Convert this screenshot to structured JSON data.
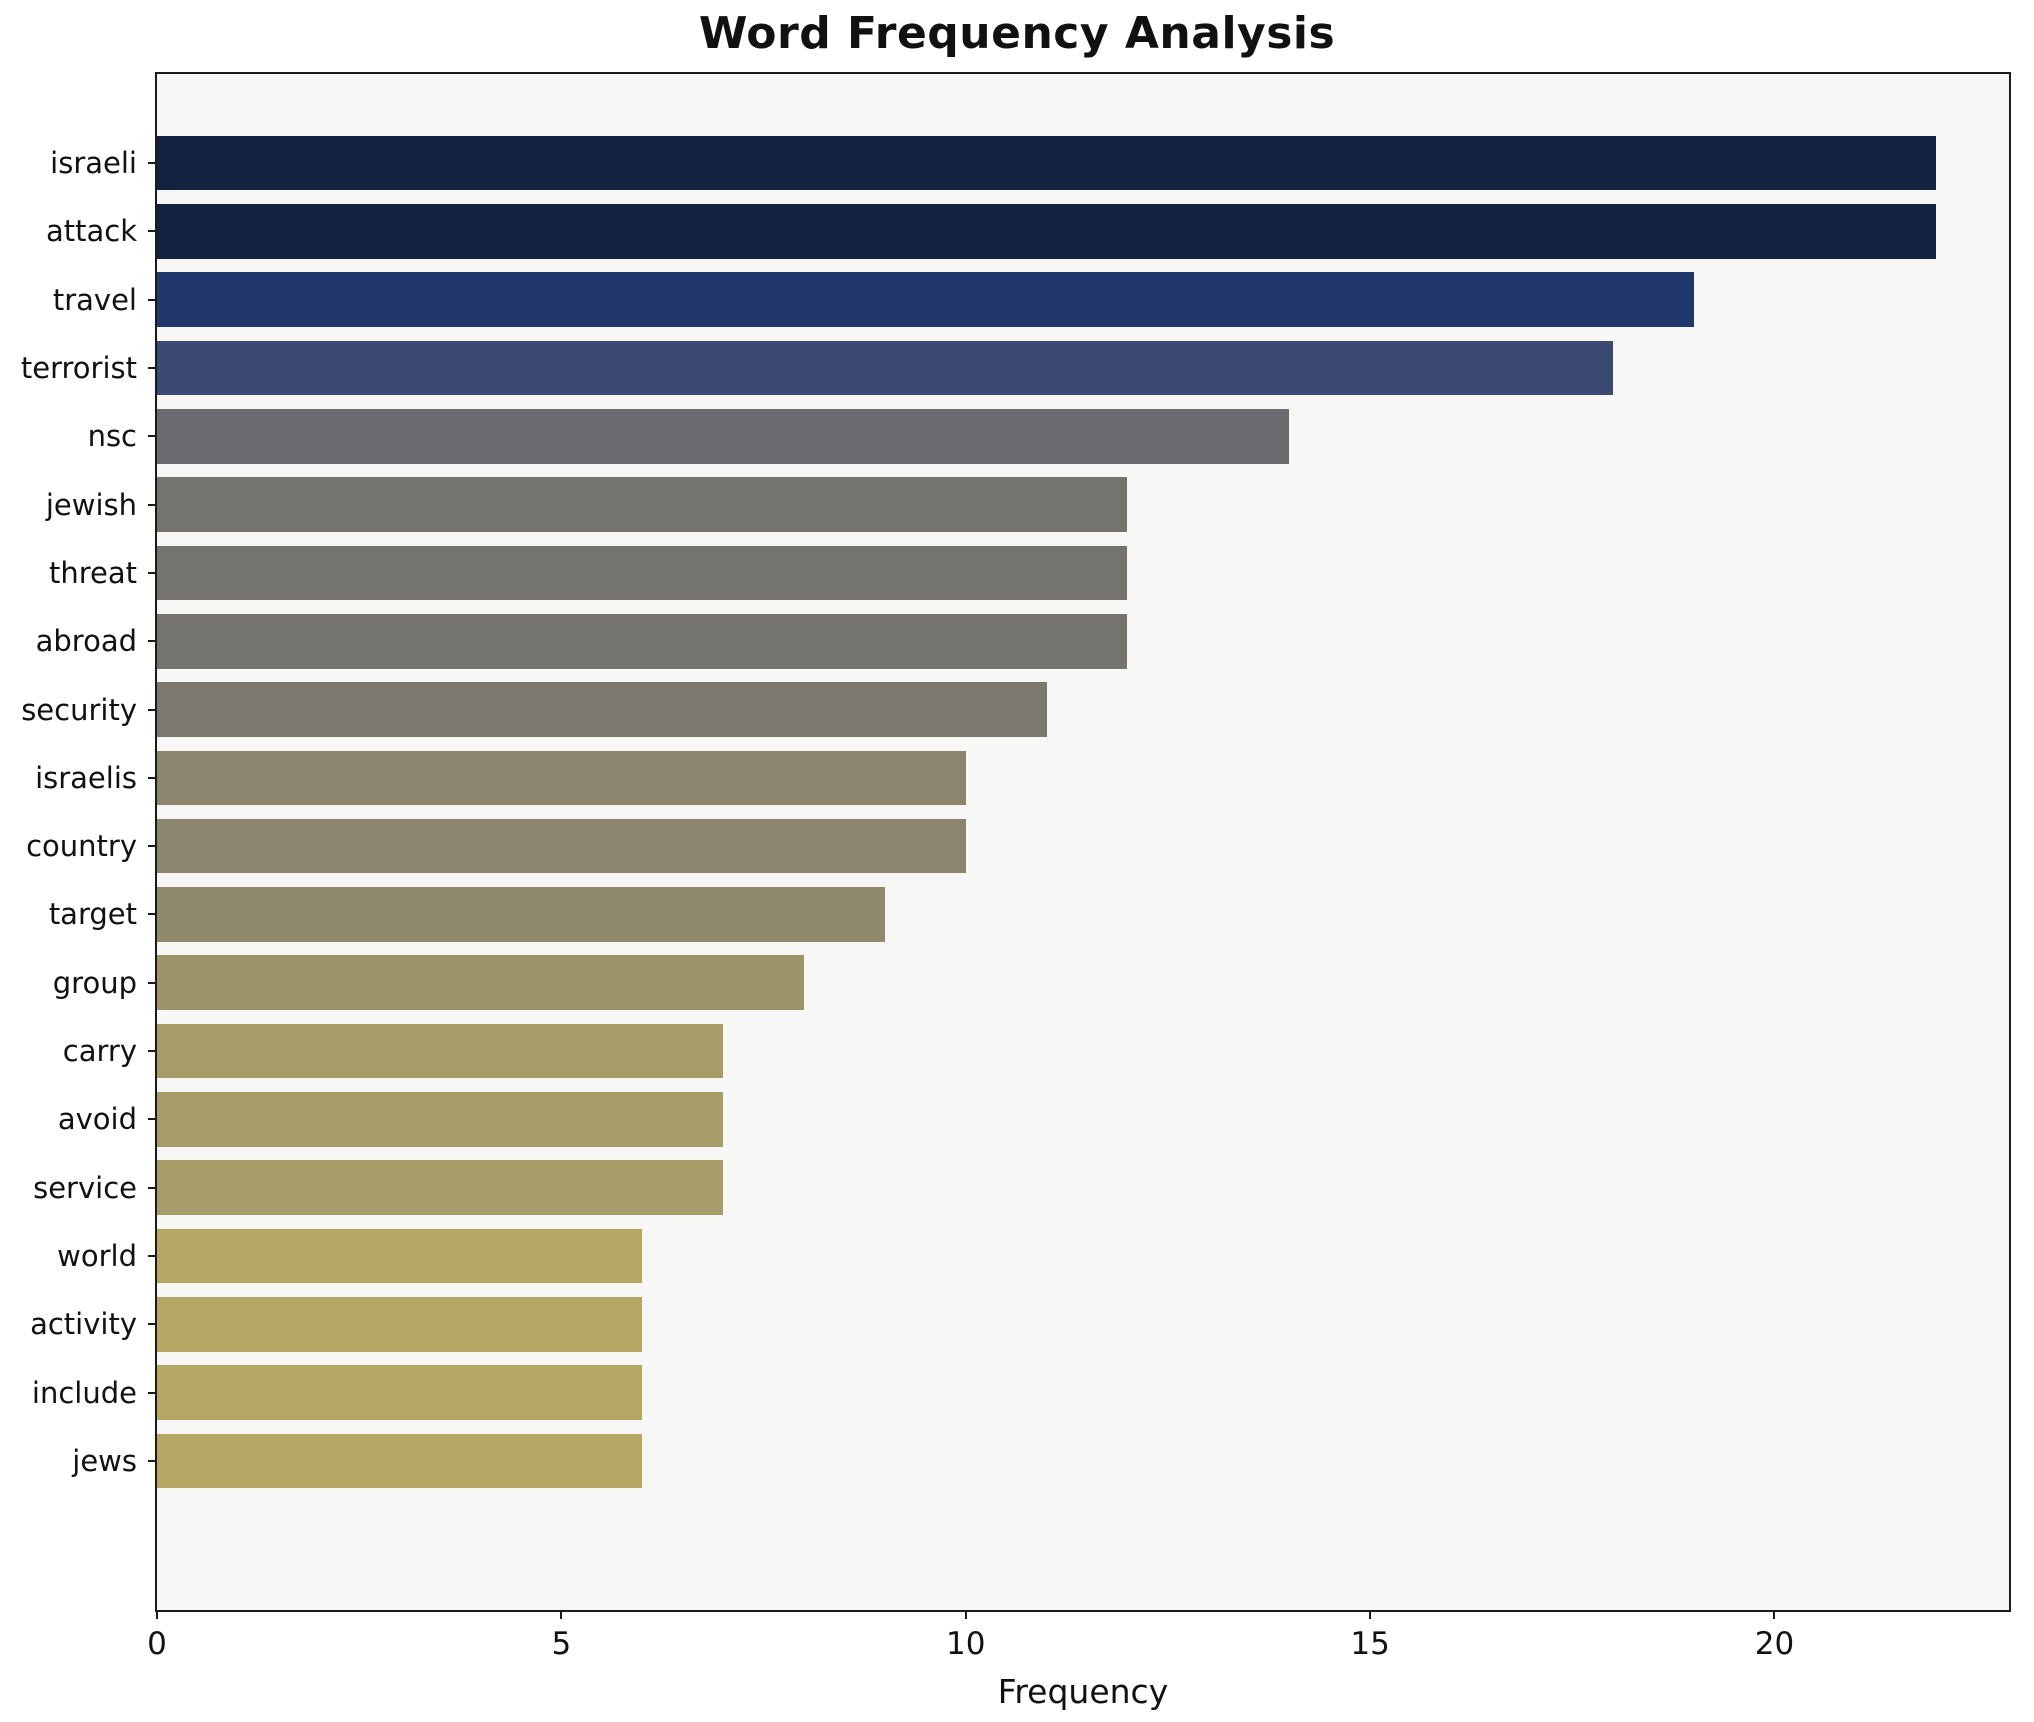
{
  "chart_data": {
    "type": "bar",
    "orientation": "horizontal",
    "title": "Word Frequency Analysis",
    "xlabel": "Frequency",
    "ylabel": "",
    "categories": [
      "israeli",
      "attack",
      "travel",
      "terrorist",
      "nsc",
      "jewish",
      "threat",
      "abroad",
      "security",
      "israelis",
      "country",
      "target",
      "group",
      "carry",
      "avoid",
      "service",
      "world",
      "activity",
      "include",
      "jews"
    ],
    "values": [
      22,
      22,
      19,
      18,
      14,
      12,
      12,
      12,
      11,
      10,
      10,
      9,
      8,
      7,
      7,
      7,
      6,
      6,
      6,
      6
    ],
    "colors": [
      "#122240",
      "#122240",
      "#20386b",
      "#3a4a72",
      "#6a6b6f",
      "#74736e",
      "#74736e",
      "#74736e",
      "#7b786e",
      "#8b856e",
      "#8b856e",
      "#90896d",
      "#9d9369",
      "#a79c67",
      "#a79c67",
      "#a79c67",
      "#b3a763",
      "#b3a763",
      "#b3a763",
      "#b3a763"
    ],
    "xlim": [
      0,
      22.9
    ],
    "xticks": [
      0,
      5,
      10,
      15,
      20
    ],
    "grid": false,
    "legend": "none",
    "plot_background": "#f7f7f5"
  }
}
